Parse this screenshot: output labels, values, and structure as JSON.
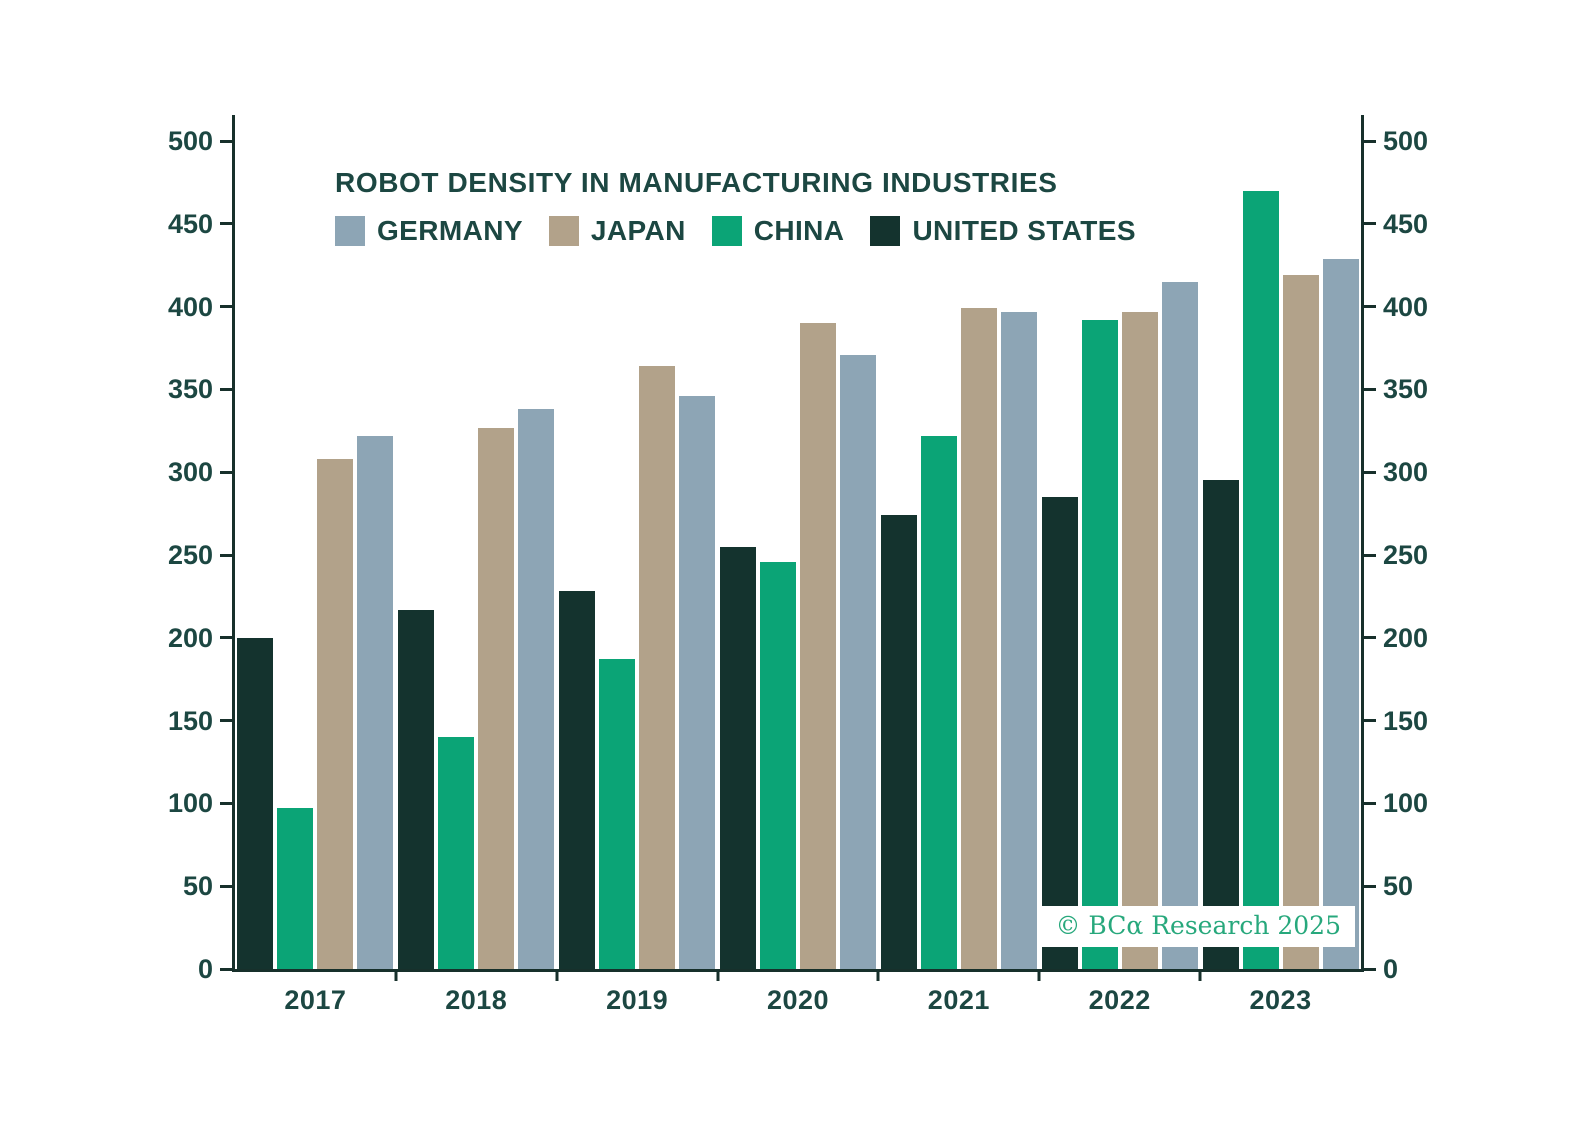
{
  "chart_data": {
    "type": "bar",
    "title": "ROBOT DENSITY IN MANUFACTURING INDUSTRIES",
    "watermark": "© BCα Research 2025",
    "categories": [
      "2017",
      "2018",
      "2019",
      "2020",
      "2021",
      "2022",
      "2023"
    ],
    "series": [
      {
        "name": "GERMANY",
        "color": "#8da5b5",
        "values": [
          322,
          338,
          346,
          371,
          397,
          415,
          429
        ]
      },
      {
        "name": "JAPAN",
        "color": "#b2a28a",
        "values": [
          308,
          327,
          364,
          390,
          399,
          397,
          419
        ]
      },
      {
        "name": "CHINA",
        "color": "#0ba476",
        "values": [
          97,
          140,
          187,
          246,
          322,
          392,
          470
        ]
      },
      {
        "name": "UNITED STATES",
        "color": "#14332e",
        "values": [
          200,
          217,
          228,
          255,
          274,
          285,
          295
        ]
      }
    ],
    "legend_order": [
      "GERMANY",
      "JAPAN",
      "CHINA",
      "UNITED STATES"
    ],
    "bar_order_in_group": [
      "UNITED STATES",
      "CHINA",
      "JAPAN",
      "GERMANY"
    ],
    "ylim": [
      0,
      500
    ],
    "yticks": [
      0,
      50,
      100,
      150,
      200,
      250,
      300,
      350,
      400,
      450,
      500
    ],
    "y_axis_sides": "both",
    "grid": false,
    "legend_position": "top-left-inside"
  },
  "colors": {
    "text": "#1c4742",
    "frame": "#17302b",
    "background": "#ffffff",
    "watermark_text": "#27a87c"
  }
}
